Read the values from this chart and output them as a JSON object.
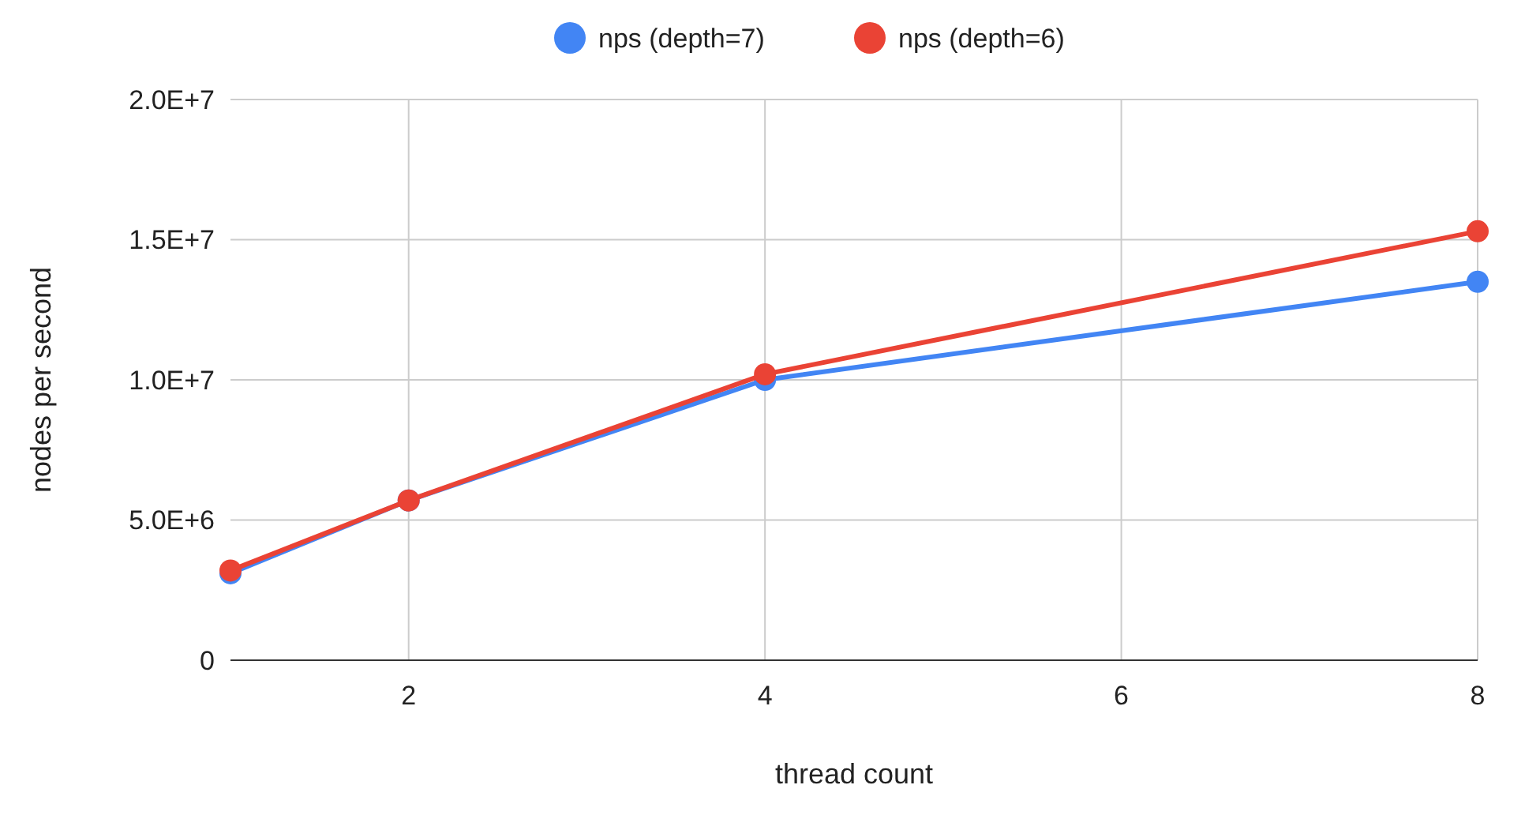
{
  "chart_data": {
    "type": "line",
    "xlabel": "thread count",
    "ylabel": "nodes per second",
    "x": [
      1,
      2,
      4,
      8
    ],
    "series": [
      {
        "name": "nps (depth=7)",
        "color": "#4285f4",
        "values": [
          3100000,
          5700000,
          10000000,
          13500000
        ]
      },
      {
        "name": "nps (depth=6)",
        "color": "#ea4335",
        "values": [
          3200000,
          5700000,
          10200000,
          15300000
        ]
      }
    ],
    "xlim": [
      1,
      8
    ],
    "xticks": [
      2,
      4,
      6,
      8
    ],
    "ylim": [
      0,
      20000000
    ],
    "yticks": [
      0,
      {
        "value": 5000000,
        "label": "5.0E+6"
      },
      {
        "value": 10000000,
        "label": "1.0E+7"
      },
      {
        "value": 15000000,
        "label": "1.5E+7"
      },
      {
        "value": 20000000,
        "label": "2.0E+7"
      }
    ],
    "grid": true,
    "legend": "top",
    "marker": "circle",
    "line_style": "solid"
  }
}
